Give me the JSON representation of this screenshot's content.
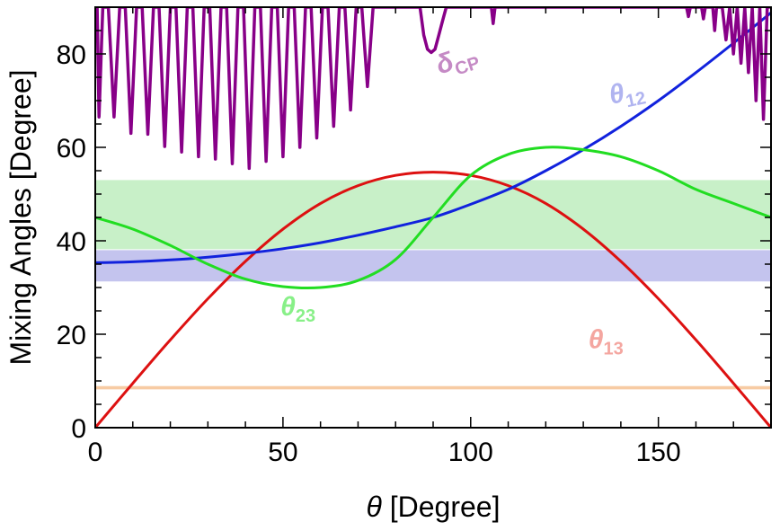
{
  "chart_data": {
    "type": "line",
    "xlabel_symbol": "θ",
    "xlabel_unit": " [Degree]",
    "ylabel": "Mixing Angles [Degree]",
    "xlim": [
      0,
      180
    ],
    "ylim": [
      0,
      90
    ],
    "x_ticks": [
      0,
      50,
      100,
      150
    ],
    "y_ticks": [
      0,
      20,
      40,
      60,
      80
    ],
    "grid": false,
    "bands": [
      {
        "name": "theta23-range",
        "y": [
          38.2,
          53.0
        ],
        "color": "#c8f0c8"
      },
      {
        "name": "theta12-range",
        "y": [
          31.3,
          38.0
        ],
        "color": "#c4c4ee"
      },
      {
        "name": "theta13-range",
        "y": [
          8.2,
          8.9
        ],
        "color": "#f7cba3"
      }
    ],
    "series": [
      {
        "key": "theta13",
        "label_main": "θ",
        "label_sub": "13",
        "color": "#dd1111",
        "label_color": "#f4a6a0",
        "x": [
          0,
          10,
          20,
          30,
          40,
          50,
          60,
          70,
          80,
          90,
          100,
          110,
          120,
          130,
          140,
          150,
          160,
          170,
          180
        ],
        "y": [
          0,
          9.5,
          18.8,
          27.6,
          35.6,
          42.5,
          48.0,
          51.8,
          54.0,
          54.7,
          54.0,
          51.8,
          48.0,
          42.5,
          35.6,
          27.6,
          18.8,
          9.5,
          0
        ]
      },
      {
        "key": "theta12",
        "label_main": "θ",
        "label_sub": "12",
        "color": "#1122dd",
        "label_color": "#b0b4f0",
        "x": [
          0,
          10,
          20,
          30,
          40,
          50,
          60,
          70,
          80,
          90,
          100,
          110,
          120,
          130,
          140,
          150,
          160,
          170,
          180
        ],
        "y": [
          35.3,
          35.5,
          35.9,
          36.5,
          37.3,
          38.3,
          39.6,
          41.2,
          43.0,
          45.0,
          47.8,
          51.0,
          55.0,
          59.5,
          64.5,
          70.0,
          76.0,
          82.3,
          88.8
        ]
      },
      {
        "key": "theta23",
        "label_main": "θ",
        "label_sub": "23",
        "color": "#22dd22",
        "label_color": "#88f088",
        "x": [
          0,
          10,
          20,
          30,
          40,
          50,
          60,
          70,
          80,
          90,
          100,
          110,
          120,
          130,
          140,
          150,
          160,
          170,
          180
        ],
        "y": [
          45.0,
          42.5,
          39.0,
          35.0,
          31.8,
          30.2,
          30.0,
          31.5,
          36.0,
          45.0,
          54.0,
          58.5,
          60.0,
          59.5,
          58.0,
          55.0,
          51.0,
          48.0,
          45.0
        ]
      },
      {
        "key": "deltaCP",
        "label_main": "δ",
        "label_sub": "CP",
        "color": "#880088",
        "label_color": "#c58ac5",
        "x": [
          0.5,
          1.0,
          2.0,
          3.5,
          5.0,
          6.5,
          8.0,
          9.5,
          11.0,
          12.5,
          14.0,
          15.5,
          17.0,
          18.5,
          20.0,
          21.5,
          23.0,
          24.5,
          26.0,
          27.5,
          29.0,
          30.5,
          32.0,
          33.5,
          35.0,
          36.5,
          38.0,
          39.5,
          41.0,
          42.5,
          44.0,
          45.5,
          47.0,
          48.5,
          50.0,
          51.5,
          53.0,
          54.5,
          56.0,
          57.5,
          59.0,
          60.5,
          62.0,
          63.5,
          65.0,
          66.5,
          68.0,
          69.5,
          71.0,
          72.5,
          74.0,
          75.5,
          76.0,
          86.5,
          87.5,
          88.5,
          89.5,
          90.5,
          91.5,
          92.5,
          93.5,
          94.5,
          105.5,
          106.0,
          106.5,
          157.5,
          158.0,
          158.5,
          161.5,
          162.0,
          162.5,
          164.5,
          165.0,
          165.5,
          167.0,
          168.0,
          169.0,
          170.0,
          171.0,
          172.0,
          173.0,
          174.0,
          175.0,
          176.0,
          177.0,
          178.0,
          179.0,
          179.5
        ],
        "y": [
          90,
          66.5,
          90,
          90,
          66.5,
          90,
          90,
          63.0,
          90,
          90,
          62.8,
          90,
          90,
          60.2,
          90,
          90,
          59.0,
          90,
          90,
          58.0,
          90,
          90,
          57.5,
          90,
          90,
          56.5,
          90,
          90,
          55.5,
          90,
          90,
          57.0,
          90,
          90,
          58.0,
          90,
          90,
          60.0,
          90,
          90,
          62.0,
          90,
          90,
          64.5,
          90,
          90,
          68.0,
          90,
          90,
          73.0,
          90,
          90,
          90,
          90,
          84.0,
          81.0,
          80.3,
          81.0,
          84.0,
          87.0,
          90,
          90,
          90,
          86.5,
          90,
          90,
          88.0,
          90,
          90,
          87.5,
          90,
          90,
          85.0,
          90,
          90,
          83.0,
          90,
          80.0,
          90,
          78.0,
          90,
          76.0,
          90,
          70.0,
          90,
          66.0,
          90,
          90
        ]
      }
    ],
    "curve_labels": [
      {
        "series": "deltaCP",
        "x": 97,
        "y": 77,
        "rotate": -18
      },
      {
        "series": "theta12",
        "x": 142,
        "y": 70,
        "rotate": -12
      },
      {
        "series": "theta23",
        "x": 54,
        "y": 24,
        "rotate": 0
      },
      {
        "series": "theta13",
        "x": 136,
        "y": 17,
        "rotate": 0
      }
    ]
  }
}
